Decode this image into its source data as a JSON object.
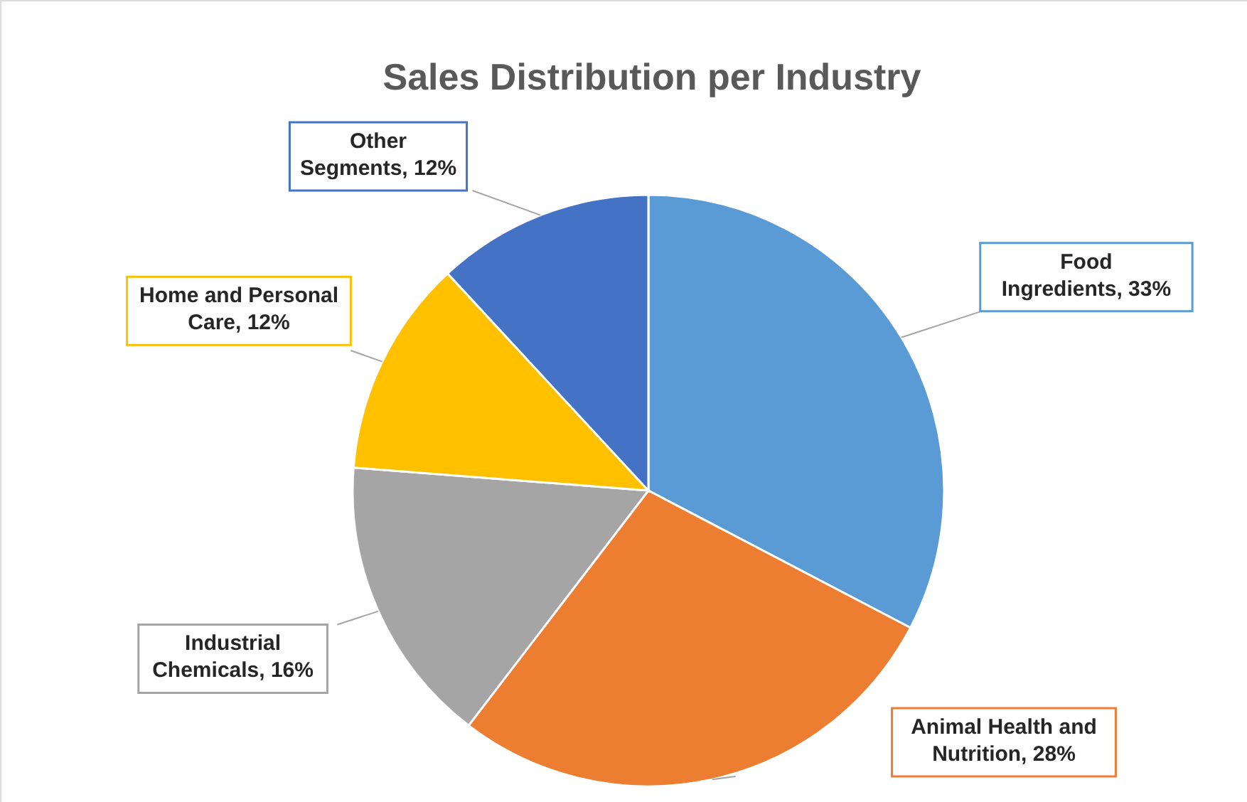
{
  "chart_data": {
    "type": "pie",
    "title": "Sales Distribution per Industry",
    "categories": [
      "Food Ingredients",
      "Animal Health and Nutrition",
      "Industrial Chemicals",
      "Home and Personal Care",
      "Other Segments"
    ],
    "value_labels": [
      "33%",
      "28%",
      "16%",
      "12%",
      "12%"
    ],
    "values": [
      33,
      28,
      16,
      12,
      12
    ],
    "colors": [
      "#5b9bd5",
      "#ed7d31",
      "#a5a5a5",
      "#ffc000",
      "#4472c4"
    ]
  }
}
